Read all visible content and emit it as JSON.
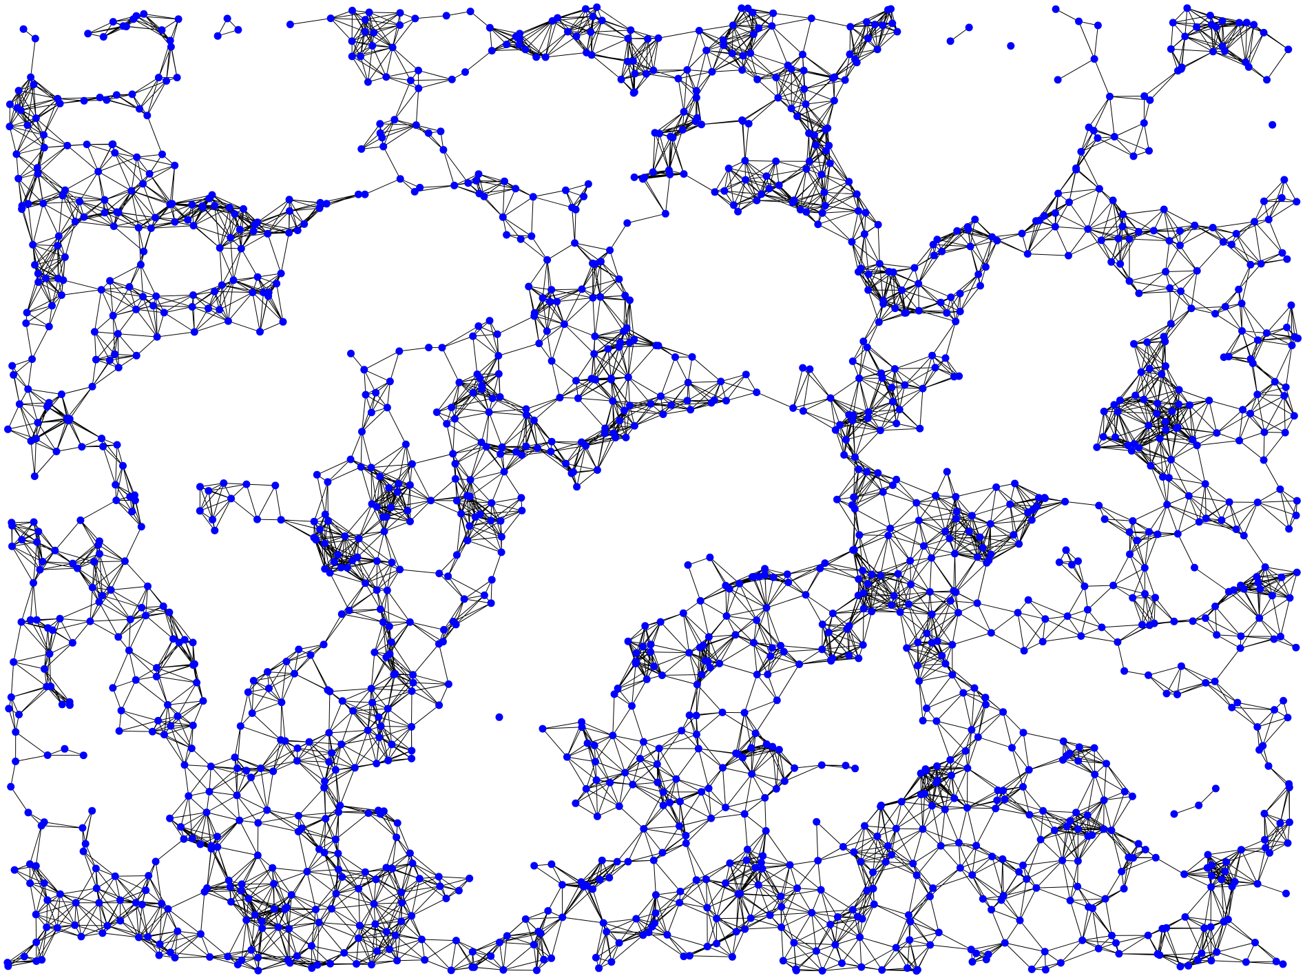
{
  "graph": {
    "layout": "random-geometric",
    "node_color": "#0000ff",
    "edge_color": "#000000",
    "background": "#ffffff",
    "directed": false,
    "labels_shown": false,
    "approx_node_count": 1700
  }
}
